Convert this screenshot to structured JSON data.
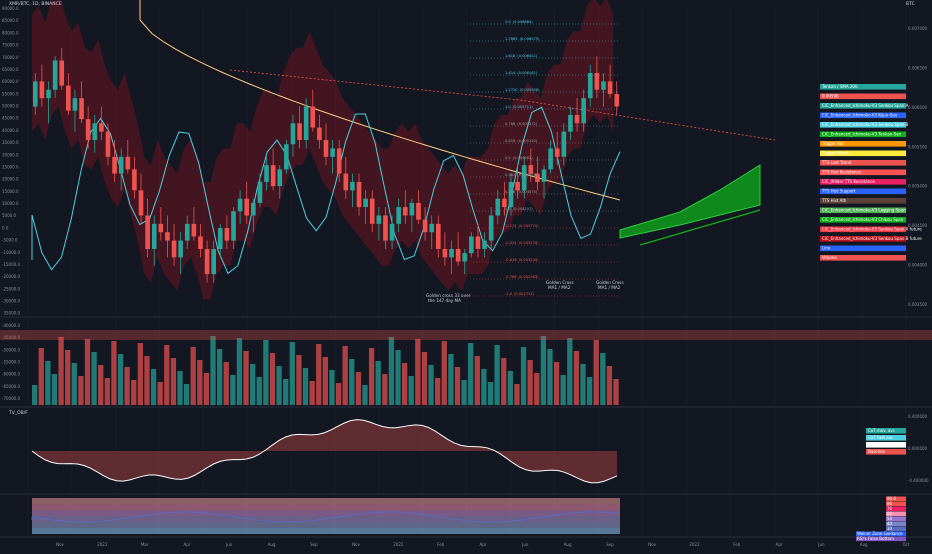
{
  "header": {
    "title": "XMR/BTC, 1D, BINANCE",
    "symbol_label": "BTC",
    "oscillator_title": "TV_OB/F"
  },
  "colors": {
    "background": "#131722",
    "bull": "#26a69a",
    "bear": "#ef5350",
    "cloud_green": "#0fb01a",
    "cloud_red": "#c0121b",
    "cyan": "#4dd0e1",
    "magenta": "#e040fb",
    "orange_ma": "#ffcc80"
  },
  "x_axis": {
    "labels": [
      "Nov",
      "2021",
      "Mar",
      "Apr",
      "Jun",
      "Aug",
      "Sep",
      "Nov",
      "2022",
      "Feb",
      "Apr",
      "Jun",
      "Aug",
      "Sep",
      "Nov",
      "2023",
      "Feb",
      "Apr",
      "Jun",
      "Aug",
      "Oct"
    ]
  },
  "left_axis": {
    "labels": [
      "90000.0",
      "85000.0",
      "80000.0",
      "75000.0",
      "70000.0",
      "65000.0",
      "60000.0",
      "55000.0",
      "50000.0",
      "45000.0",
      "40000.0",
      "35000.0",
      "30000.0",
      "25000.0",
      "20000.0",
      "15000.0",
      "10000.0",
      "5000.0",
      "0.0",
      "-5000.0",
      "-10000.0",
      "-15000.0",
      "-20000.0",
      "-25000.0",
      "-30000.0",
      "-35000.0",
      "-40000.0",
      "-45000.0",
      "-50000.0",
      "-55000.0",
      "-60000.0",
      "-65000.0",
      "-70000.0"
    ]
  },
  "right_axis": {
    "labels": [
      "0.007000",
      "0.006500",
      "0.006000",
      "0.005500",
      "0.005000",
      "0.004500",
      "0.004000",
      "0.003500"
    ]
  },
  "price_tags": [
    {
      "text": "Tenkan / SMA 200",
      "color": "#26a69a"
    },
    {
      "text": "0.00598",
      "color": "#ef5350"
    },
    {
      "text": "CiC_Enhanced_Ichimoku-V3 Senkou Span A",
      "color": "#26a69a"
    },
    {
      "text": "CiC_Enhanced_Ichimoku-V3 Kijun-Sen",
      "color": "#2962ff"
    },
    {
      "text": "CiC_Enhanced_Ichimoku-V3 Senkou Span B",
      "color": "#4dd0e1"
    },
    {
      "text": "CiC_Enhanced_Ichimoku-V3 Tenkan-Sen",
      "color": "#0fb01a"
    },
    {
      "text": "Trigger Bar",
      "color": "#ff9800"
    },
    {
      "text": "Trigger Admit",
      "color": "#ffeb3b"
    },
    {
      "text": "TTS Last Trend",
      "color": "#ef5350"
    },
    {
      "text": "TTS Hist Resistance",
      "color": "#ff5252"
    },
    {
      "text": "CiC_Wilder TTS Resistance",
      "color": "#e91e63"
    },
    {
      "text": "TTS Hist Support",
      "color": "#2962ff"
    },
    {
      "text": "TTS Hist Ath",
      "color": "#5d4037"
    },
    {
      "text": "CiC_Enhanced_Ichimoku-V3 Lagging Span",
      "color": "#4caf50"
    },
    {
      "text": "CiC_Enhanced_Ichimoku-V3 Chikou Span",
      "color": "#0fb01a"
    },
    {
      "text": "CiC_Enhanced_Ichimoku-V3 Senkou Span A future",
      "color": "#f23645"
    },
    {
      "text": "CiC_Enhanced_Ichimoku-V3 Senkou Span B future",
      "color": "#c0121b"
    },
    {
      "text": "Line",
      "color": "#2962ff"
    },
    {
      "text": "Volume",
      "color": "#ef5350"
    }
  ],
  "fib_levels": [
    {
      "ratio": "2.0",
      "value": "0.006864"
    },
    {
      "ratio": "1.7865",
      "value": "0.006575"
    },
    {
      "ratio": "1.618",
      "value": "0.006411"
    },
    {
      "ratio": "1.414",
      "value": "0.006161"
    },
    {
      "ratio": "1.2720",
      "value": "0.005958"
    },
    {
      "ratio": "1.0",
      "value": "0.005711"
    },
    {
      "ratio": "0.786",
      "value": "0.005372"
    },
    {
      "ratio": "0.618",
      "value": "0.005120"
    },
    {
      "ratio": "0.5",
      "value": "0.004982"
    },
    {
      "ratio": "0.382",
      "value": "0.004828"
    },
    {
      "ratio": "0.236",
      "value": "0.004575"
    },
    {
      "ratio": "0.0",
      "value": "0.004257"
    },
    {
      "ratio": "-0.272",
      "value": "0.003770"
    },
    {
      "ratio": "-0.414",
      "value": "0.003578"
    },
    {
      "ratio": "-0.618",
      "value": "0.003244"
    },
    {
      "ratio": "-0.786",
      "value": "0.002983"
    },
    {
      "ratio": "-1.0",
      "value": "0.002713"
    }
  ],
  "annotations": [
    {
      "text": "Golden cross 33 over"
    },
    {
      "text": "the 147 day MA"
    },
    {
      "text": "Golden Cross"
    },
    {
      "text": "MA1 / MA2"
    },
    {
      "text": "Golden Cross"
    },
    {
      "text": "MA1 / MA2"
    }
  ],
  "oscillator_tags": [
    {
      "text": "CoT mov. avr.",
      "color": "#26a69a"
    },
    {
      "text": "CoT Fast avr.",
      "color": "#4dd0e1"
    },
    {
      "text": "Line",
      "color": "#ffffff"
    },
    {
      "text": "Baseline",
      "color": "#ef5350"
    }
  ],
  "oscillator_axis": {
    "labels": [
      "0.400000",
      "0.000000",
      "-0.400000"
    ]
  },
  "rsi_tags": [
    {
      "text": "90.0",
      "color": "#ef5350"
    },
    {
      "text": "80",
      "color": "#ef5350"
    },
    {
      "text": "70",
      "color": "#e91e63"
    },
    {
      "text": "60",
      "color": "#f48fb1"
    },
    {
      "text": "50",
      "color": "#9575cd"
    },
    {
      "text": "40",
      "color": "#7986cb"
    },
    {
      "text": "30",
      "color": "#5c6bc0"
    },
    {
      "text": "Weiner Zone Guidance",
      "color": "#2962ff"
    },
    {
      "text": "RSI's False Bottom",
      "color": "#7e57c2"
    }
  ],
  "chart_data": {
    "type": "candlestick",
    "ohlc": [
      [
        0.006,
        0.0064,
        0.0059,
        0.0063
      ],
      [
        0.0063,
        0.0065,
        0.006,
        0.0061
      ],
      [
        0.0061,
        0.0063,
        0.0058,
        0.0062
      ],
      [
        0.0062,
        0.0066,
        0.0061,
        0.00655
      ],
      [
        0.00655,
        0.0067,
        0.0062,
        0.00625
      ],
      [
        0.00625,
        0.0064,
        0.0059,
        0.00595
      ],
      [
        0.00595,
        0.0062,
        0.0057,
        0.0061
      ],
      [
        0.0061,
        0.0063,
        0.0058,
        0.00585
      ],
      [
        0.00585,
        0.006,
        0.0055,
        0.0056
      ],
      [
        0.0056,
        0.0059,
        0.00545,
        0.0058
      ],
      [
        0.0058,
        0.006,
        0.0056,
        0.0057
      ],
      [
        0.0057,
        0.0058,
        0.0053,
        0.0054
      ],
      [
        0.0054,
        0.0056,
        0.0051,
        0.0052
      ],
      [
        0.0052,
        0.0055,
        0.005,
        0.0054
      ],
      [
        0.0054,
        0.0056,
        0.0052,
        0.00525
      ],
      [
        0.00525,
        0.0054,
        0.0049,
        0.005
      ],
      [
        0.005,
        0.0052,
        0.0046,
        0.0047
      ],
      [
        0.0047,
        0.0049,
        0.0042,
        0.0043
      ],
      [
        0.0043,
        0.0047,
        0.0041,
        0.0046
      ],
      [
        0.0046,
        0.0048,
        0.0044,
        0.0045
      ],
      [
        0.0045,
        0.0047,
        0.0042,
        0.0044
      ],
      [
        0.0044,
        0.0046,
        0.0041,
        0.0042
      ],
      [
        0.0042,
        0.0045,
        0.004,
        0.0044
      ],
      [
        0.0044,
        0.0047,
        0.0043,
        0.0046
      ],
      [
        0.0046,
        0.0048,
        0.0044,
        0.00445
      ],
      [
        0.00445,
        0.0046,
        0.0042,
        0.0043
      ],
      [
        0.0043,
        0.0044,
        0.0039,
        0.004
      ],
      [
        0.004,
        0.0044,
        0.0039,
        0.0043
      ],
      [
        0.0043,
        0.0046,
        0.0042,
        0.00455
      ],
      [
        0.00455,
        0.0047,
        0.0043,
        0.0044
      ],
      [
        0.0044,
        0.0048,
        0.0043,
        0.00475
      ],
      [
        0.00475,
        0.005,
        0.0046,
        0.0049
      ],
      [
        0.0049,
        0.0051,
        0.0046,
        0.0047
      ],
      [
        0.0047,
        0.0049,
        0.0045,
        0.00485
      ],
      [
        0.00485,
        0.0052,
        0.0048,
        0.0051
      ],
      [
        0.0051,
        0.0054,
        0.005,
        0.0053
      ],
      [
        0.0053,
        0.0055,
        0.005,
        0.00505
      ],
      [
        0.00505,
        0.0053,
        0.0049,
        0.00525
      ],
      [
        0.00525,
        0.0056,
        0.0052,
        0.00555
      ],
      [
        0.00555,
        0.0059,
        0.0054,
        0.0058
      ],
      [
        0.0058,
        0.006,
        0.0055,
        0.0056
      ],
      [
        0.0056,
        0.0061,
        0.0055,
        0.006
      ],
      [
        0.006,
        0.0062,
        0.0057,
        0.00575
      ],
      [
        0.00575,
        0.0059,
        0.0055,
        0.0056
      ],
      [
        0.0056,
        0.0058,
        0.0053,
        0.0054
      ],
      [
        0.0054,
        0.0056,
        0.0052,
        0.0055
      ],
      [
        0.0055,
        0.0056,
        0.0051,
        0.0052
      ],
      [
        0.0052,
        0.0054,
        0.0049,
        0.005
      ],
      [
        0.005,
        0.0052,
        0.0048,
        0.0051
      ],
      [
        0.0051,
        0.0052,
        0.0047,
        0.0048
      ],
      [
        0.0048,
        0.005,
        0.0046,
        0.0049
      ],
      [
        0.0049,
        0.005,
        0.0045,
        0.0046
      ],
      [
        0.0046,
        0.0048,
        0.0044,
        0.0047
      ],
      [
        0.0047,
        0.0048,
        0.0043,
        0.0044
      ],
      [
        0.0044,
        0.0047,
        0.0043,
        0.0046
      ],
      [
        0.0046,
        0.0049,
        0.0045,
        0.0048
      ],
      [
        0.0048,
        0.005,
        0.0046,
        0.0047
      ],
      [
        0.0047,
        0.0049,
        0.0045,
        0.00485
      ],
      [
        0.00485,
        0.005,
        0.0046,
        0.00465
      ],
      [
        0.00465,
        0.0048,
        0.0044,
        0.0045
      ],
      [
        0.0045,
        0.0047,
        0.0043,
        0.0046
      ],
      [
        0.0046,
        0.0047,
        0.0042,
        0.0043
      ],
      [
        0.0043,
        0.0045,
        0.0041,
        0.0042
      ],
      [
        0.0042,
        0.0044,
        0.004,
        0.0043
      ],
      [
        0.0043,
        0.0045,
        0.0041,
        0.00415
      ],
      [
        0.00415,
        0.0043,
        0.004,
        0.00425
      ],
      [
        0.00425,
        0.0045,
        0.0042,
        0.00445
      ],
      [
        0.00445,
        0.0046,
        0.0042,
        0.0043
      ],
      [
        0.0043,
        0.0045,
        0.0042,
        0.0044
      ],
      [
        0.0044,
        0.0048,
        0.0043,
        0.0047
      ],
      [
        0.0047,
        0.005,
        0.0046,
        0.0049
      ],
      [
        0.0049,
        0.0051,
        0.0047,
        0.0048
      ],
      [
        0.0048,
        0.0052,
        0.0047,
        0.0051
      ],
      [
        0.0051,
        0.0053,
        0.0049,
        0.005
      ],
      [
        0.005,
        0.0054,
        0.0049,
        0.0053
      ],
      [
        0.0053,
        0.0055,
        0.0051,
        0.0052
      ],
      [
        0.0052,
        0.0054,
        0.005,
        0.0051
      ],
      [
        0.0051,
        0.0053,
        0.0049,
        0.00525
      ],
      [
        0.00525,
        0.0056,
        0.0052,
        0.0055
      ],
      [
        0.0055,
        0.0057,
        0.0053,
        0.0054
      ],
      [
        0.0054,
        0.0058,
        0.0053,
        0.0057
      ],
      [
        0.0057,
        0.006,
        0.0056,
        0.0059
      ],
      [
        0.0059,
        0.0061,
        0.0057,
        0.0058
      ],
      [
        0.0058,
        0.0062,
        0.0057,
        0.0061
      ],
      [
        0.0061,
        0.0065,
        0.006,
        0.0064
      ],
      [
        0.0064,
        0.0066,
        0.0061,
        0.0062
      ],
      [
        0.0062,
        0.0064,
        0.006,
        0.0063
      ],
      [
        0.0063,
        0.0065,
        0.0061,
        0.00615
      ],
      [
        0.00615,
        0.0063,
        0.0059,
        0.006
      ]
    ],
    "x_range": [
      "2020-10",
      "2023-10"
    ],
    "y_range": [
      0.0035,
      0.0072
    ],
    "annotations_count": 3
  }
}
